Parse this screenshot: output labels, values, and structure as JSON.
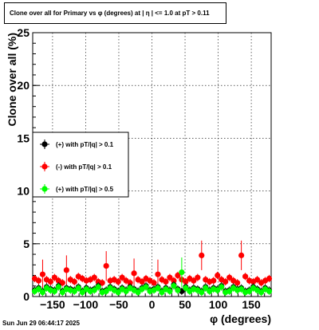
{
  "header": {
    "title": "Clone  over all for Primary vs φ (degrees) at |  η  | <= 1.0 at pT > 0.11"
  },
  "footer": {
    "timestamp": "Sun Jun 29 06:44:17 2025"
  },
  "chart_data": {
    "type": "scatter",
    "title": "Clone  over all for Primary vs φ (degrees) at |  η  | <= 1.0 at pT > 0.11",
    "xlabel": "φ (degrees)",
    "ylabel": "Clone  over all (%)",
    "xlim": [
      -180,
      180
    ],
    "ylim": [
      0,
      25
    ],
    "xticks": [
      -150,
      -100,
      -50,
      0,
      50,
      100,
      150
    ],
    "xtick_labels": [
      "−150",
      "−100",
      "−50",
      "0",
      "50",
      "100",
      "150"
    ],
    "yticks": [
      5,
      10,
      15,
      20,
      25
    ],
    "ytick_labels": [
      "5",
      "10",
      "15",
      "20",
      "25"
    ],
    "ytick_zero": "0",
    "grid": true,
    "legend_placement": "left-middle",
    "series": [
      {
        "name": "(+) with pT/|q| > 0.1",
        "color": "#000000",
        "marker": "circle",
        "x": [
          -177,
          -171,
          -165,
          -159,
          -153,
          -147,
          -141,
          -135,
          -129,
          -123,
          -117,
          -111,
          -105,
          -99,
          -93,
          -87,
          -81,
          -75,
          -69,
          -63,
          -57,
          -51,
          -45,
          -39,
          -33,
          -27,
          -21,
          -15,
          -9,
          -3,
          3,
          9,
          15,
          21,
          27,
          33,
          39,
          45,
          51,
          57,
          63,
          69,
          75,
          81,
          87,
          93,
          99,
          105,
          111,
          117,
          123,
          129,
          135,
          141,
          147,
          153,
          159,
          165,
          171,
          177
        ],
        "y": [
          0.6,
          0.8,
          0.5,
          0.9,
          0.7,
          0.6,
          1.0,
          0.5,
          0.8,
          0.7,
          0.6,
          0.9,
          0.5,
          0.8,
          0.6,
          0.7,
          1.0,
          0.5,
          0.6,
          0.9,
          0.7,
          0.5,
          0.8,
          0.6,
          0.9,
          0.7,
          0.5,
          0.8,
          1.0,
          0.6,
          0.7,
          0.9,
          0.5,
          0.8,
          0.6,
          1.1,
          0.7,
          0.5,
          0.9,
          0.6,
          0.8,
          0.7,
          0.5,
          0.9,
          0.6,
          0.8,
          0.7,
          1.0,
          0.5,
          0.6,
          0.9,
          0.7,
          0.8,
          0.5,
          0.6,
          0.9,
          0.7,
          0.5,
          0.8,
          0.6
        ]
      },
      {
        "name": "(-) with pT/|q| > 0.1",
        "color": "#ff0000",
        "marker": "circle",
        "x": [
          -177,
          -171,
          -165,
          -159,
          -153,
          -147,
          -141,
          -135,
          -129,
          -123,
          -117,
          -111,
          -105,
          -99,
          -93,
          -87,
          -81,
          -75,
          -69,
          -63,
          -57,
          -51,
          -45,
          -39,
          -33,
          -27,
          -21,
          -15,
          -9,
          -3,
          3,
          9,
          15,
          21,
          27,
          33,
          39,
          45,
          51,
          57,
          63,
          69,
          75,
          81,
          87,
          93,
          99,
          105,
          111,
          117,
          123,
          129,
          135,
          141,
          147,
          153,
          159,
          165,
          171,
          177
        ],
        "y": [
          1.7,
          1.5,
          2.1,
          1.6,
          1.4,
          1.8,
          1.5,
          1.3,
          2.5,
          1.6,
          1.4,
          1.9,
          1.7,
          1.5,
          1.6,
          1.8,
          1.4,
          1.3,
          2.9,
          1.5,
          1.6,
          1.4,
          1.8,
          1.5,
          1.3,
          2.2,
          1.6,
          1.4,
          1.7,
          1.5,
          1.3,
          2.1,
          1.6,
          1.4,
          1.8,
          1.5,
          2.0,
          1.6,
          1.4,
          1.7,
          1.5,
          1.8,
          3.9,
          1.6,
          1.4,
          1.5,
          2.0,
          1.6,
          1.4,
          1.8,
          1.5,
          1.3,
          3.9,
          1.9,
          1.5,
          1.4,
          1.6,
          1.3,
          1.5,
          1.7
        ]
      },
      {
        "name": "(+) with pT/|q| > 0.5",
        "color": "#00ff00",
        "marker": "circle",
        "x": [
          -177,
          -171,
          -165,
          -159,
          -153,
          -147,
          -141,
          -135,
          -129,
          -123,
          -117,
          -111,
          -105,
          -99,
          -93,
          -87,
          -81,
          -75,
          -69,
          -63,
          -57,
          -51,
          -45,
          -39,
          -33,
          -27,
          -21,
          -15,
          -9,
          -3,
          3,
          9,
          15,
          21,
          27,
          33,
          39,
          45,
          51,
          57,
          63,
          69,
          75,
          81,
          87,
          93,
          99,
          105,
          111,
          117,
          123,
          129,
          135,
          141,
          147,
          153,
          159,
          165,
          171,
          177
        ],
        "y": [
          0.5,
          0.7,
          0.4,
          0.8,
          0.6,
          0.5,
          0.9,
          0.4,
          0.7,
          0.6,
          0.5,
          0.8,
          0.4,
          0.7,
          0.5,
          0.6,
          0.9,
          0.4,
          0.5,
          0.8,
          0.6,
          0.4,
          0.7,
          0.5,
          0.8,
          0.6,
          0.4,
          0.7,
          0.9,
          0.5,
          0.6,
          0.8,
          0.4,
          0.7,
          0.5,
          1.0,
          0.6,
          2.3,
          0.8,
          0.5,
          0.7,
          0.6,
          0.4,
          0.8,
          0.5,
          0.7,
          0.6,
          0.9,
          0.4,
          0.5,
          0.8,
          0.6,
          0.7,
          0.4,
          0.5,
          0.8,
          0.6,
          0.4,
          0.7,
          0.5
        ]
      }
    ]
  }
}
